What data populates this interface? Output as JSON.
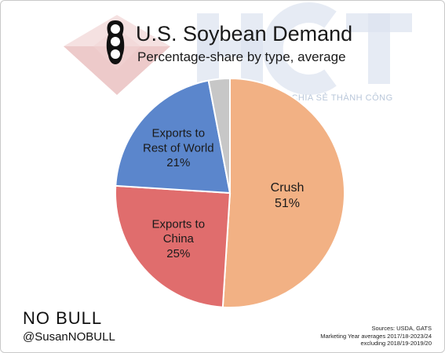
{
  "chart_data": {
    "type": "pie",
    "title": "U.S. Soybean Demand",
    "subtitle": "Percentage-share by type, average",
    "categories": [
      "Crush",
      "Exports to China",
      "Exports to Rest of World",
      ""
    ],
    "values": [
      51,
      25,
      21,
      3
    ],
    "label_lines": [
      [
        "Crush",
        "51%"
      ],
      [
        "Exports to",
        "China",
        "25%"
      ],
      [
        "Exports to",
        "Rest of World",
        "21%"
      ],
      []
    ],
    "colors": [
      "#f2b184",
      "#e06d6d",
      "#5b86cc",
      "#c7c7c7"
    ],
    "legend": "none",
    "start": "top, clockwise"
  },
  "brand": "NO BULL",
  "handle": "@SusanNOBULL",
  "sources": [
    "Sources: USDA, GATS",
    "Marketing Year averages 2017/18-2023/24",
    "excluding 2018/19-2019/20"
  ],
  "watermark": {
    "logo": "HCT",
    "tagline": "KIẾN TẠO GIÁ TRỊ – CHIA SẺ THÀNH CÔNG"
  },
  "icons": [
    "soybean-pod-icon"
  ]
}
